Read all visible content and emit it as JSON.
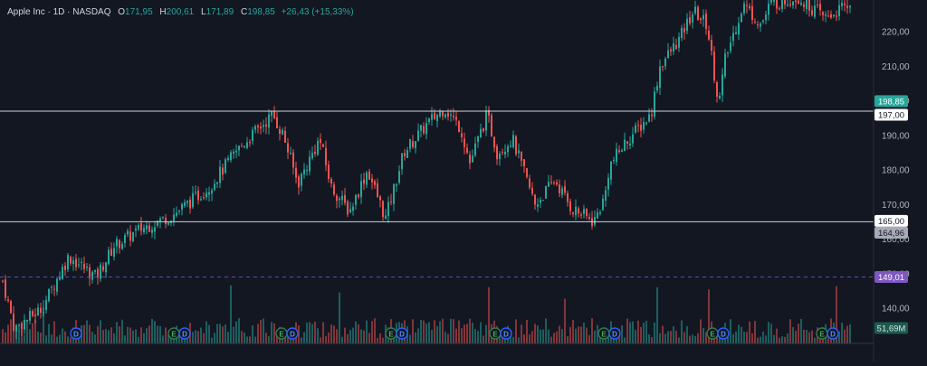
{
  "legend": {
    "symbol": "Apple Inc · 1D · NASDAQ",
    "o_label": "O",
    "o_value": "171,95",
    "h_label": "H",
    "h_value": "200,61",
    "l_label": "L",
    "l_value": "171,89",
    "c_label": "C",
    "c_value": "198,85",
    "change": "+26,43 (+15,33%)"
  },
  "colors": {
    "background": "#131722",
    "up": "#26a69a",
    "down": "#ef5350",
    "line": "#d1d4dc",
    "dashed": "#5b4bb0",
    "close_badge": "#26a69a",
    "dashed_badge": "#7e57c2",
    "volume_badge": "#1e5a4f"
  },
  "chart_data": {
    "type": "candlestick",
    "price_axis": {
      "ticks": [
        140,
        150,
        160,
        170,
        180,
        190,
        200,
        210,
        220
      ],
      "tick_labels": [
        "140,00",
        "150,00",
        "160,00",
        "170,00",
        "180,00",
        "190,00",
        "200,00",
        "210,00",
        "220,00"
      ],
      "range": [
        130,
        228
      ]
    },
    "close_price": 198.85,
    "close_label": "198,85",
    "horizontal_lines": [
      {
        "value": 197,
        "label": "197,00",
        "style": "solid"
      },
      {
        "value": 165,
        "label": "165,00",
        "style": "solid"
      },
      {
        "value": 149.01,
        "label": "149,01",
        "style": "dashed"
      }
    ],
    "price_labels": [
      {
        "value": 164.96,
        "label": "164,96"
      }
    ],
    "volume_label": "51,69M",
    "event_markers": [
      {
        "letter": "D",
        "type": "dividend"
      },
      {
        "letter": "E",
        "type": "earnings"
      },
      {
        "letter": "D",
        "type": "dividend"
      },
      {
        "letter": "E",
        "type": "earnings"
      },
      {
        "letter": "D",
        "type": "dividend"
      },
      {
        "letter": "E",
        "type": "earnings"
      },
      {
        "letter": "D",
        "type": "dividend"
      },
      {
        "letter": "E",
        "type": "earnings"
      },
      {
        "letter": "D",
        "type": "dividend"
      },
      {
        "letter": "E",
        "type": "earnings"
      },
      {
        "letter": "D",
        "type": "dividend"
      },
      {
        "letter": "E",
        "type": "earnings"
      },
      {
        "letter": "D",
        "type": "dividend"
      },
      {
        "letter": "E",
        "type": "earnings"
      },
      {
        "letter": "D",
        "type": "dividend"
      }
    ],
    "price_path": [
      [
        0,
        150
      ],
      [
        15,
        134
      ],
      [
        45,
        140
      ],
      [
        75,
        155
      ],
      [
        105,
        149
      ],
      [
        125,
        158
      ],
      [
        155,
        163
      ],
      [
        190,
        167
      ],
      [
        230,
        175
      ],
      [
        262,
        186
      ],
      [
        300,
        196
      ],
      [
        312,
        190
      ],
      [
        328,
        176
      ],
      [
        352,
        189
      ],
      [
        365,
        175
      ],
      [
        385,
        168
      ],
      [
        405,
        180
      ],
      [
        425,
        166
      ],
      [
        445,
        185
      ],
      [
        470,
        193
      ],
      [
        490,
        198
      ],
      [
        508,
        192
      ],
      [
        518,
        182
      ],
      [
        537,
        196
      ],
      [
        548,
        185
      ],
      [
        565,
        189
      ],
      [
        590,
        170
      ],
      [
        612,
        177
      ],
      [
        630,
        169
      ],
      [
        655,
        165
      ],
      [
        667,
        172
      ],
      [
        672,
        181
      ],
      [
        690,
        188
      ],
      [
        718,
        196
      ],
      [
        728,
        210
      ],
      [
        750,
        218
      ],
      [
        765,
        226
      ],
      [
        780,
        222
      ],
      [
        793,
        199
      ],
      [
        800,
        212
      ],
      [
        820,
        228
      ],
      [
        840,
        222
      ],
      [
        850,
        228
      ],
      [
        880,
        230
      ],
      [
        910,
        224
      ],
      [
        940,
        228
      ]
    ]
  }
}
